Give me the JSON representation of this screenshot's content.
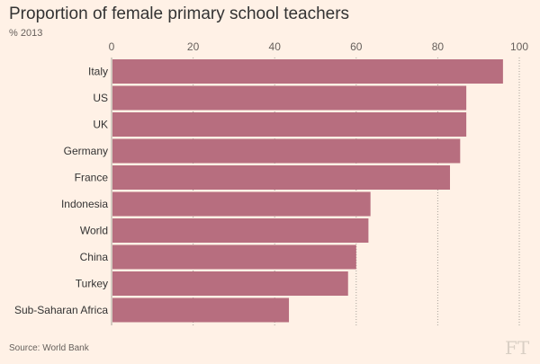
{
  "title": "Proportion of female primary school teachers",
  "subtitle": "% 2013",
  "source": "Source: World Bank",
  "logo": "FT",
  "chart_data": {
    "type": "bar",
    "orientation": "horizontal",
    "title": "Proportion of female primary school teachers",
    "subtitle": "% 2013",
    "categories": [
      "Italy",
      "US",
      "UK",
      "Germany",
      "France",
      "Indonesia",
      "World",
      "China",
      "Turkey",
      "Sub-Saharan Africa"
    ],
    "values": [
      96,
      87,
      87,
      85.5,
      83,
      63.5,
      63,
      60,
      58,
      43.5
    ],
    "xlim": [
      0,
      100
    ],
    "xticks": [
      0,
      20,
      40,
      60,
      80,
      100
    ],
    "xaxis_position": "top",
    "grid": "vertical dotted",
    "bar_color": "#b76e7f",
    "background_color": "#fff1e6"
  }
}
